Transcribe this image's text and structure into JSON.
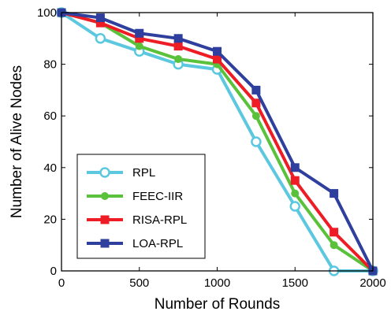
{
  "chart_data": {
    "type": "line",
    "title": "",
    "xlabel": "Number of Rounds",
    "ylabel": "Number of Alive Nodes",
    "xlim": [
      0,
      2000
    ],
    "ylim": [
      0,
      100
    ],
    "xticks": [
      0,
      500,
      1000,
      1500,
      2000
    ],
    "yticks": [
      0,
      20,
      40,
      60,
      80,
      100
    ],
    "grid": false,
    "legend_position": "bottom-left",
    "x": [
      0,
      250,
      500,
      750,
      1000,
      1250,
      1500,
      1750,
      2000
    ],
    "series": [
      {
        "name": "RPL",
        "color": "#5bc8e0",
        "marker": "open-circle",
        "values": [
          100,
          90,
          85,
          80,
          78,
          50,
          25,
          0,
          0
        ]
      },
      {
        "name": "FEEC-IIR",
        "color": "#59c23a",
        "marker": "filled-circle",
        "values": [
          100,
          96,
          87,
          82,
          80,
          60,
          30,
          10,
          0
        ]
      },
      {
        "name": "RISA-RPL",
        "color": "#ee1c24",
        "marker": "filled-square",
        "values": [
          100,
          96,
          90,
          87,
          82,
          65,
          35,
          15,
          0
        ]
      },
      {
        "name": "LOA-RPL",
        "color": "#2f3f9e",
        "marker": "filled-square",
        "values": [
          100,
          98,
          92,
          90,
          85,
          70,
          40,
          30,
          0
        ]
      }
    ]
  }
}
